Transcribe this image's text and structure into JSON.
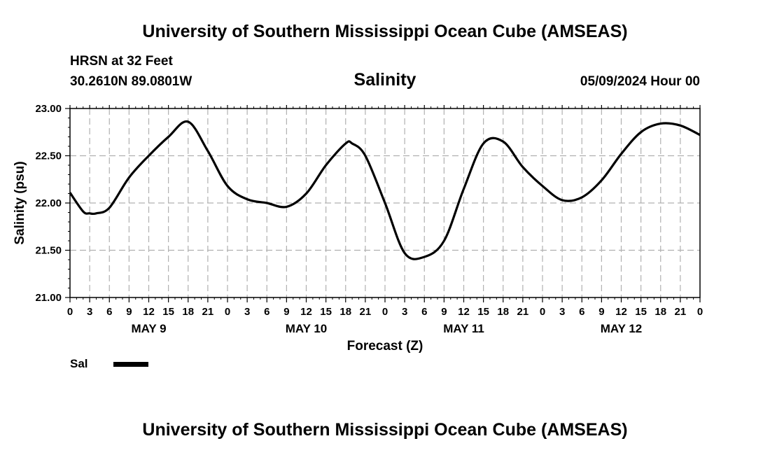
{
  "header": {
    "title": "University of Southern Mississippi Ocean Cube (AMSEAS)",
    "station": "HRSN at 32 Feet",
    "coords": "30.2610N  89.0801W",
    "chart_title": "Salinity",
    "datetime": "05/09/2024 Hour 00"
  },
  "footer": {
    "title": "University of Southern Mississippi Ocean Cube (AMSEAS)"
  },
  "legend": {
    "label": "Sal",
    "color": "#000000"
  },
  "chart_data": {
    "type": "line",
    "title": "Salinity",
    "xlabel": "Forecast (Z)",
    "ylabel": "Salinity (psu)",
    "ylim": [
      21.0,
      23.0
    ],
    "xlim": [
      0,
      96
    ],
    "grid": true,
    "y_ticks": [
      "21.00",
      "21.50",
      "22.00",
      "22.50",
      "23.00"
    ],
    "x_tick_labels": [
      "0",
      "3",
      "6",
      "9",
      "12",
      "15",
      "18",
      "21",
      "0",
      "3",
      "6",
      "9",
      "12",
      "15",
      "18",
      "21",
      "0",
      "3",
      "6",
      "9",
      "12",
      "15",
      "18",
      "21",
      "0",
      "3",
      "6",
      "9",
      "12",
      "15",
      "18",
      "21",
      "0"
    ],
    "day_labels": [
      {
        "label": "MAY 9",
        "hour": 12
      },
      {
        "label": "MAY 10",
        "hour": 36
      },
      {
        "label": "MAY 11",
        "hour": 60
      },
      {
        "label": "MAY 12",
        "hour": 84
      }
    ],
    "series": [
      {
        "name": "Sal",
        "x": [
          0,
          2,
          3,
          4,
          6,
          9,
          12,
          15,
          18,
          21,
          24,
          27,
          30,
          33,
          36,
          39,
          42,
          43,
          45,
          48,
          51,
          54,
          57,
          60,
          63,
          66,
          69,
          72,
          75,
          78,
          81,
          84,
          87,
          90,
          93,
          96
        ],
        "values": [
          22.11,
          21.91,
          21.89,
          21.89,
          21.95,
          22.27,
          22.5,
          22.7,
          22.86,
          22.55,
          22.18,
          22.04,
          22.0,
          21.96,
          22.1,
          22.4,
          22.63,
          22.63,
          22.5,
          22.0,
          21.47,
          21.43,
          21.6,
          22.15,
          22.63,
          22.65,
          22.38,
          22.18,
          22.03,
          22.06,
          22.24,
          22.52,
          22.75,
          22.84,
          22.82,
          22.72
        ]
      }
    ]
  }
}
